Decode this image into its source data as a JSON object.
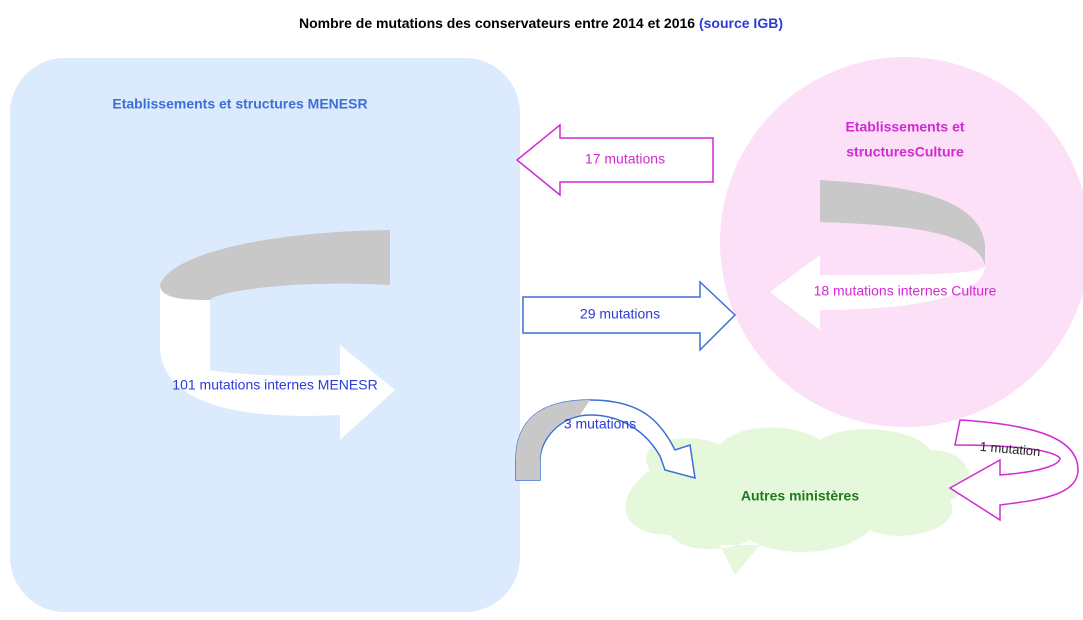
{
  "title": {
    "main": "Nombre de mutations des conservateurs entre 2014 et 2016",
    "source": "(source IGB)"
  },
  "nodes": [
    {
      "label": "Etablissements et structures  MENESR",
      "internal": "101 mutations internes MENESR"
    },
    {
      "label_lines": [
        "Etablissements et",
        "structuresCulture"
      ],
      "internal": "18 mutations internes Culture"
    },
    {
      "label": "Autres ministères"
    }
  ],
  "flows": [
    "17 mutations",
    "29 mutations",
    "3 mutations",
    "1 mutation"
  ]
}
